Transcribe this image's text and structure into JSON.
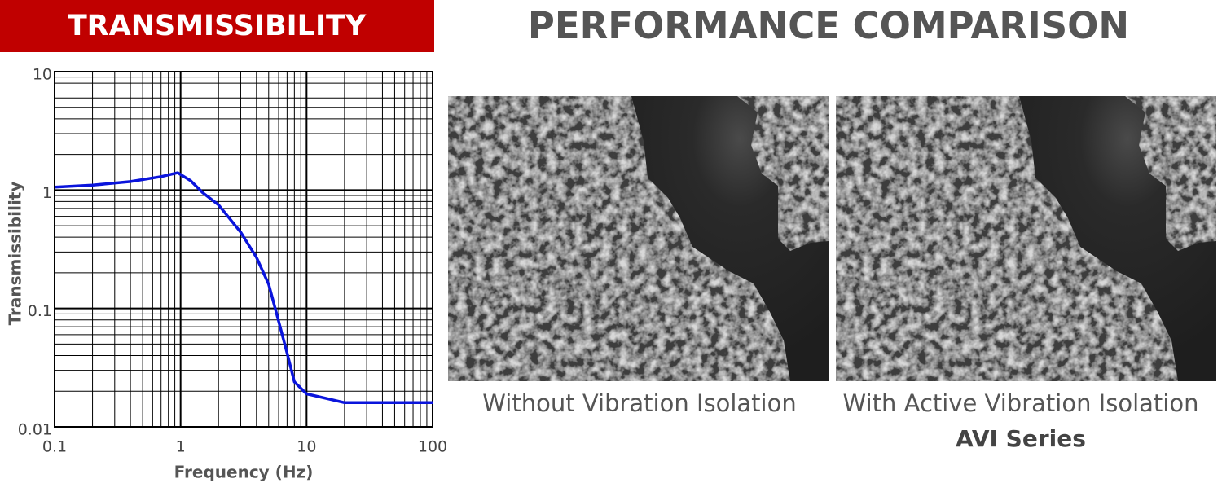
{
  "banner": {
    "title": "TRANSMISSIBILITY"
  },
  "chart_data": {
    "type": "line",
    "xlabel": "Frequency (Hz)",
    "ylabel": "Transmissibility",
    "x": [
      0.1,
      0.2,
      0.4,
      0.7,
      0.95,
      1.2,
      1.5,
      2,
      3,
      4,
      5,
      6,
      7,
      8,
      10,
      20,
      100
    ],
    "values": [
      1.06,
      1.1,
      1.18,
      1.3,
      1.4,
      1.2,
      0.95,
      0.75,
      0.44,
      0.27,
      0.16,
      0.078,
      0.042,
      0.024,
      0.019,
      0.016,
      0.016
    ],
    "color": "#0a14dc",
    "xscale": "log",
    "yscale": "log",
    "xlim": [
      0.1,
      100
    ],
    "ylim": [
      0.01,
      10
    ],
    "xticks": [
      0.1,
      1,
      10,
      100
    ],
    "yticks": [
      0.01,
      0.1,
      1,
      10
    ],
    "grid": true
  },
  "comparison": {
    "title": "PERFORMANCE COMPARISON",
    "panels": [
      {
        "caption": "Without Vibration Isolation"
      },
      {
        "caption": "With Active Vibration Isolation",
        "subcaption": "AVI Series"
      }
    ]
  }
}
